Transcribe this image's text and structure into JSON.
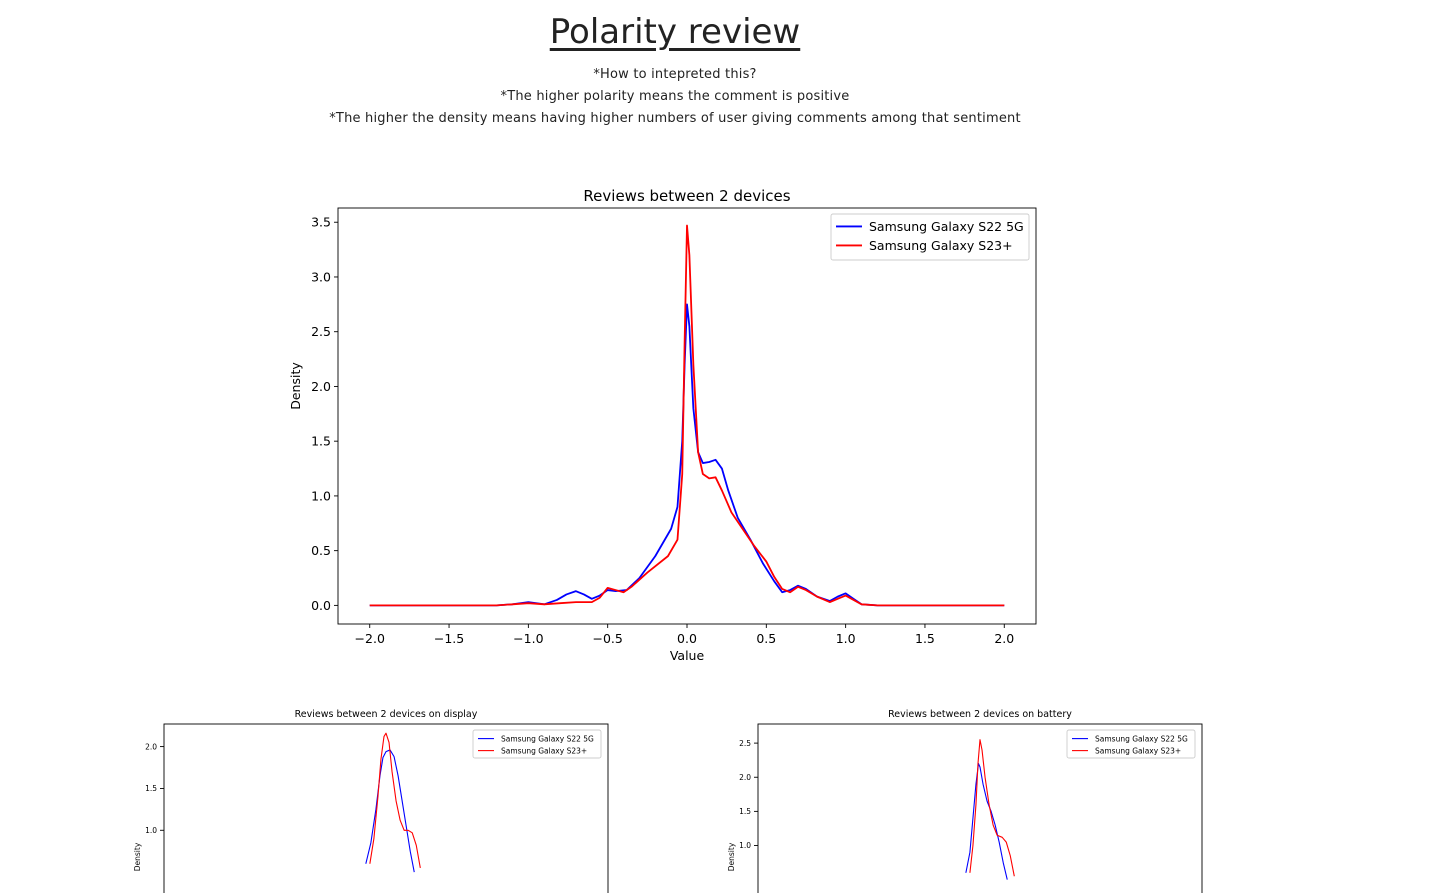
{
  "header": {
    "title": "Polarity review",
    "notes": [
      "*How to intepreted this?",
      "*The higher polarity means the comment is positive",
      "*The higher the density means having higher numbers of user giving comments among that sentiment"
    ]
  },
  "chart_data": [
    {
      "type": "line",
      "title": "Reviews between 2 devices",
      "xlabel": "Value",
      "ylabel": "Density",
      "xlim": [
        -2.2,
        2.2
      ],
      "ylim": [
        -0.17,
        3.63
      ],
      "xticks": [
        -2.0,
        -1.5,
        -1.0,
        -0.5,
        0.0,
        0.5,
        1.0,
        1.5,
        2.0
      ],
      "xtick_labels": [
        "−2.0",
        "−1.5",
        "−1.0",
        "−0.5",
        "0.0",
        "0.5",
        "1.0",
        "1.5",
        "2.0"
      ],
      "yticks": [
        0.0,
        0.5,
        1.0,
        1.5,
        2.0,
        2.5,
        3.0,
        3.5
      ],
      "ytick_labels": [
        "0.0",
        "0.5",
        "1.0",
        "1.5",
        "2.0",
        "2.5",
        "3.0",
        "3.5"
      ],
      "grid": false,
      "legend": "top-right",
      "series": [
        {
          "name": "Samsung Galaxy S22 5G",
          "color": "#0000ff",
          "points": [
            [
              -2.0,
              0
            ],
            [
              -1.2,
              0
            ],
            [
              -1.1,
              0.01
            ],
            [
              -1.0,
              0.03
            ],
            [
              -0.9,
              0.01
            ],
            [
              -0.82,
              0.05
            ],
            [
              -0.76,
              0.1
            ],
            [
              -0.7,
              0.13
            ],
            [
              -0.65,
              0.1
            ],
            [
              -0.6,
              0.06
            ],
            [
              -0.55,
              0.09
            ],
            [
              -0.5,
              0.14
            ],
            [
              -0.45,
              0.13
            ],
            [
              -0.38,
              0.14
            ],
            [
              -0.3,
              0.25
            ],
            [
              -0.2,
              0.45
            ],
            [
              -0.1,
              0.7
            ],
            [
              -0.06,
              0.9
            ],
            [
              -0.03,
              1.5
            ],
            [
              -0.015,
              2.2
            ],
            [
              0.0,
              2.75
            ],
            [
              0.015,
              2.55
            ],
            [
              0.04,
              1.8
            ],
            [
              0.07,
              1.4
            ],
            [
              0.1,
              1.3
            ],
            [
              0.14,
              1.31
            ],
            [
              0.18,
              1.33
            ],
            [
              0.22,
              1.25
            ],
            [
              0.26,
              1.05
            ],
            [
              0.32,
              0.8
            ],
            [
              0.4,
              0.6
            ],
            [
              0.48,
              0.38
            ],
            [
              0.55,
              0.22
            ],
            [
              0.6,
              0.12
            ],
            [
              0.65,
              0.14
            ],
            [
              0.7,
              0.18
            ],
            [
              0.75,
              0.15
            ],
            [
              0.82,
              0.08
            ],
            [
              0.9,
              0.04
            ],
            [
              0.95,
              0.08
            ],
            [
              1.0,
              0.11
            ],
            [
              1.05,
              0.06
            ],
            [
              1.1,
              0.01
            ],
            [
              1.2,
              0
            ],
            [
              2.0,
              0
            ]
          ]
        },
        {
          "name": "Samsung Galaxy S23+",
          "color": "#ff0000",
          "points": [
            [
              -2.0,
              0
            ],
            [
              -1.2,
              0
            ],
            [
              -1.1,
              0.01
            ],
            [
              -1.0,
              0.02
            ],
            [
              -0.9,
              0.01
            ],
            [
              -0.8,
              0.02
            ],
            [
              -0.7,
              0.03
            ],
            [
              -0.6,
              0.03
            ],
            [
              -0.55,
              0.07
            ],
            [
              -0.5,
              0.16
            ],
            [
              -0.45,
              0.14
            ],
            [
              -0.4,
              0.12
            ],
            [
              -0.35,
              0.17
            ],
            [
              -0.25,
              0.3
            ],
            [
              -0.12,
              0.45
            ],
            [
              -0.06,
              0.6
            ],
            [
              -0.03,
              1.2
            ],
            [
              -0.015,
              2.4
            ],
            [
              0.0,
              3.47
            ],
            [
              0.015,
              3.2
            ],
            [
              0.04,
              2.2
            ],
            [
              0.07,
              1.4
            ],
            [
              0.1,
              1.2
            ],
            [
              0.14,
              1.16
            ],
            [
              0.18,
              1.17
            ],
            [
              0.22,
              1.05
            ],
            [
              0.28,
              0.85
            ],
            [
              0.35,
              0.7
            ],
            [
              0.42,
              0.55
            ],
            [
              0.5,
              0.4
            ],
            [
              0.55,
              0.26
            ],
            [
              0.6,
              0.15
            ],
            [
              0.65,
              0.12
            ],
            [
              0.7,
              0.17
            ],
            [
              0.75,
              0.14
            ],
            [
              0.82,
              0.08
            ],
            [
              0.9,
              0.03
            ],
            [
              0.95,
              0.06
            ],
            [
              1.0,
              0.09
            ],
            [
              1.05,
              0.05
            ],
            [
              1.1,
              0.01
            ],
            [
              1.2,
              0
            ],
            [
              2.0,
              0
            ]
          ]
        }
      ]
    },
    {
      "type": "line",
      "title": "Reviews between 2 devices on display",
      "ylabel": "Density",
      "xlim": [
        -2.2,
        2.2
      ],
      "ylim": [
        -0.12,
        2.27
      ],
      "yticks": [
        1.0,
        1.5,
        2.0
      ],
      "ytick_labels": [
        "1.0",
        "1.5",
        "2.0"
      ],
      "grid": false,
      "legend": "top-right",
      "series": [
        {
          "name": "Samsung Galaxy S22 5G",
          "color": "#0000ff",
          "points": [
            [
              -0.2,
              0.6
            ],
            [
              -0.15,
              0.85
            ],
            [
              -0.1,
              1.25
            ],
            [
              -0.06,
              1.65
            ],
            [
              -0.03,
              1.87
            ],
            [
              0.0,
              1.94
            ],
            [
              0.04,
              1.96
            ],
            [
              0.08,
              1.88
            ],
            [
              0.12,
              1.65
            ],
            [
              0.16,
              1.35
            ],
            [
              0.2,
              1.05
            ],
            [
              0.24,
              0.75
            ],
            [
              0.28,
              0.5
            ]
          ]
        },
        {
          "name": "Samsung Galaxy S23+",
          "color": "#ff0000",
          "points": [
            [
              -0.16,
              0.6
            ],
            [
              -0.12,
              0.9
            ],
            [
              -0.08,
              1.4
            ],
            [
              -0.05,
              1.85
            ],
            [
              -0.02,
              2.12
            ],
            [
              0.0,
              2.16
            ],
            [
              0.03,
              2.05
            ],
            [
              0.06,
              1.7
            ],
            [
              0.1,
              1.35
            ],
            [
              0.14,
              1.12
            ],
            [
              0.18,
              1.0
            ],
            [
              0.22,
              1.0
            ],
            [
              0.26,
              0.97
            ],
            [
              0.3,
              0.82
            ],
            [
              0.34,
              0.55
            ]
          ]
        }
      ]
    },
    {
      "type": "line",
      "title": "Reviews between 2 devices on battery",
      "ylabel": "Density",
      "xlim": [
        -2.2,
        2.2
      ],
      "ylim": [
        -0.15,
        2.78
      ],
      "yticks": [
        1.0,
        1.5,
        2.0,
        2.5
      ],
      "ytick_labels": [
        "1.0",
        "1.5",
        "2.0",
        "2.5"
      ],
      "grid": false,
      "legend": "top-right",
      "series": [
        {
          "name": "Samsung Galaxy S22 5G",
          "color": "#0000ff",
          "points": [
            [
              -0.14,
              0.6
            ],
            [
              -0.1,
              0.9
            ],
            [
              -0.07,
              1.4
            ],
            [
              -0.04,
              1.9
            ],
            [
              -0.015,
              2.2
            ],
            [
              0.0,
              2.15
            ],
            [
              0.03,
              1.9
            ],
            [
              0.07,
              1.65
            ],
            [
              0.11,
              1.5
            ],
            [
              0.15,
              1.3
            ],
            [
              0.19,
              1.05
            ],
            [
              0.23,
              0.75
            ],
            [
              0.27,
              0.5
            ]
          ]
        },
        {
          "name": "Samsung Galaxy S23+",
          "color": "#ff0000",
          "points": [
            [
              -0.1,
              0.6
            ],
            [
              -0.07,
              1.0
            ],
            [
              -0.04,
              1.6
            ],
            [
              -0.02,
              2.2
            ],
            [
              0.0,
              2.55
            ],
            [
              0.02,
              2.4
            ],
            [
              0.05,
              2.0
            ],
            [
              0.09,
              1.6
            ],
            [
              0.13,
              1.3
            ],
            [
              0.17,
              1.15
            ],
            [
              0.22,
              1.12
            ],
            [
              0.26,
              1.05
            ],
            [
              0.3,
              0.85
            ],
            [
              0.34,
              0.55
            ]
          ]
        }
      ]
    }
  ]
}
